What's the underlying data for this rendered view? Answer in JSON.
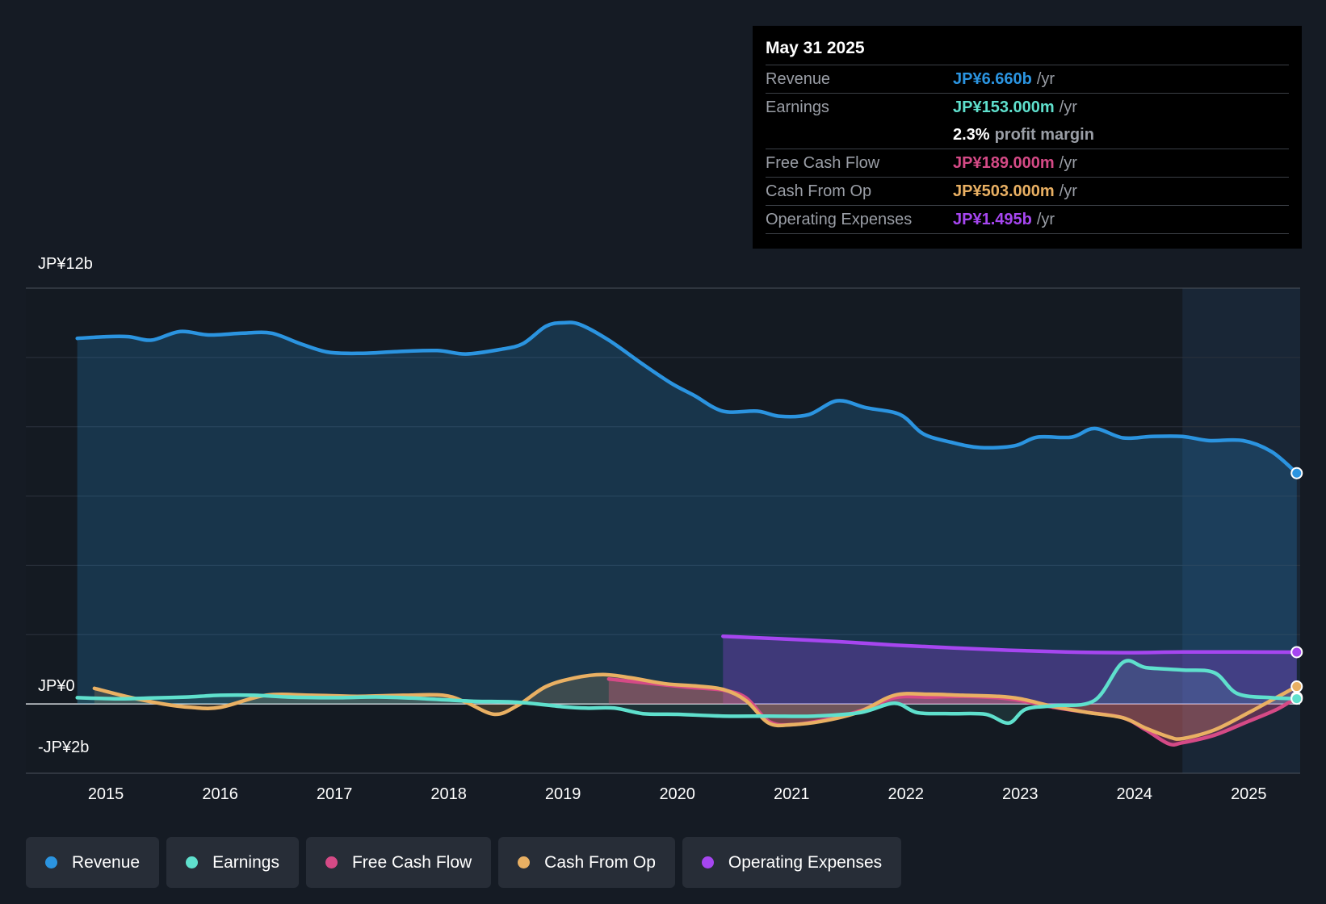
{
  "tooltip": {
    "date": "May 31 2025",
    "rows": [
      {
        "label": "Revenue",
        "value": "JP¥6.660b",
        "unit": "/yr"
      },
      {
        "label": "Earnings",
        "value": "JP¥153.000m",
        "unit": "/yr"
      },
      {
        "label": "",
        "value": "2.3%",
        "unit": "profit margin"
      },
      {
        "label": "Free Cash Flow",
        "value": "JP¥189.000m",
        "unit": "/yr"
      },
      {
        "label": "Cash From Op",
        "value": "JP¥503.000m",
        "unit": "/yr"
      },
      {
        "label": "Operating Expenses",
        "value": "JP¥1.495b",
        "unit": "/yr"
      }
    ]
  },
  "legend": [
    {
      "label": "Revenue",
      "color": "#2b94e0"
    },
    {
      "label": "Earnings",
      "color": "#5fe0cd"
    },
    {
      "label": "Free Cash Flow",
      "color": "#d54a86"
    },
    {
      "label": "Cash From Op",
      "color": "#e9b063"
    },
    {
      "label": "Operating Expenses",
      "color": "#a646f0"
    }
  ],
  "colors": {
    "revenue": "#2b94e0",
    "earnings": "#5fe0cd",
    "fcf": "#d54a86",
    "cfo": "#e9b063",
    "opex": "#a646f0"
  },
  "chart_data": {
    "type": "line",
    "title": "",
    "xlabel": "",
    "ylabel": "",
    "ylim": [
      -2,
      12
    ],
    "y_ticks": [
      {
        "value": 12,
        "label": "JP¥12b"
      },
      {
        "value": 0,
        "label": "JP¥0"
      },
      {
        "value": -2,
        "label": "-JP¥2b"
      }
    ],
    "x_range": [
      2014.3,
      2025.45
    ],
    "x_ticks": [
      2015,
      2016,
      2017,
      2018,
      2019,
      2020,
      2021,
      2022,
      2023,
      2024,
      2025
    ],
    "forecast_start": 2024.42,
    "series": [
      {
        "name": "Revenue",
        "key": "revenue",
        "unit": "JP¥b",
        "x": [
          2014.75,
          2015.0,
          2015.2,
          2015.4,
          2015.65,
          2015.9,
          2016.2,
          2016.45,
          2016.7,
          2016.95,
          2017.25,
          2017.55,
          2017.9,
          2018.15,
          2018.45,
          2018.65,
          2018.85,
          2019.0,
          2019.15,
          2019.4,
          2019.7,
          2019.95,
          2020.15,
          2020.4,
          2020.7,
          2020.9,
          2021.15,
          2021.4,
          2021.65,
          2021.95,
          2022.15,
          2022.4,
          2022.65,
          2022.95,
          2023.15,
          2023.45,
          2023.65,
          2023.9,
          2024.15,
          2024.42,
          2024.65,
          2024.95,
          2025.2,
          2025.42
        ],
        "values": [
          10.55,
          10.6,
          10.6,
          10.5,
          10.75,
          10.65,
          10.7,
          10.7,
          10.4,
          10.15,
          10.12,
          10.17,
          10.2,
          10.1,
          10.23,
          10.4,
          10.9,
          11.0,
          10.95,
          10.5,
          9.8,
          9.25,
          8.9,
          8.45,
          8.45,
          8.3,
          8.35,
          8.75,
          8.55,
          8.35,
          7.8,
          7.55,
          7.4,
          7.45,
          7.7,
          7.7,
          7.95,
          7.68,
          7.72,
          7.72,
          7.6,
          7.6,
          7.28,
          6.66
        ]
      },
      {
        "name": "Earnings",
        "key": "earnings",
        "unit": "JP¥b",
        "x": [
          2014.75,
          2015.1,
          2015.4,
          2015.7,
          2016.0,
          2016.3,
          2016.6,
          2017.0,
          2017.4,
          2017.8,
          2018.2,
          2018.6,
          2019.0,
          2019.2,
          2019.45,
          2019.7,
          2020.0,
          2020.4,
          2020.8,
          2021.2,
          2021.6,
          2021.9,
          2022.1,
          2022.4,
          2022.7,
          2022.9,
          2023.05,
          2023.3,
          2023.65,
          2023.9,
          2024.1,
          2024.42,
          2024.7,
          2024.9,
          2025.2,
          2025.42
        ],
        "values": [
          0.18,
          0.15,
          0.17,
          0.2,
          0.25,
          0.25,
          0.2,
          0.18,
          0.2,
          0.15,
          0.08,
          0.05,
          -0.08,
          -0.12,
          -0.12,
          -0.28,
          -0.3,
          -0.35,
          -0.35,
          -0.35,
          -0.25,
          0.02,
          -0.25,
          -0.28,
          -0.3,
          -0.55,
          -0.15,
          -0.05,
          0.1,
          1.2,
          1.05,
          0.98,
          0.9,
          0.3,
          0.18,
          0.153
        ]
      },
      {
        "name": "Free Cash Flow",
        "key": "fcf",
        "unit": "JP¥b",
        "x": [
          2019.4,
          2019.75,
          2020.1,
          2020.4,
          2020.6,
          2020.8,
          2021.0,
          2021.3,
          2021.6,
          2021.9,
          2022.2,
          2022.5,
          2022.8,
          2023.0,
          2023.3,
          2023.6,
          2023.9,
          2024.1,
          2024.3,
          2024.42,
          2024.7,
          2025.0,
          2025.25,
          2025.42
        ],
        "values": [
          0.72,
          0.6,
          0.48,
          0.4,
          0.18,
          -0.5,
          -0.6,
          -0.45,
          -0.2,
          0.18,
          0.2,
          0.22,
          0.18,
          0.1,
          -0.1,
          -0.25,
          -0.4,
          -0.75,
          -1.15,
          -1.12,
          -0.9,
          -0.5,
          -0.15,
          0.189
        ]
      },
      {
        "name": "Cash From Op",
        "key": "cfo",
        "unit": "JP¥b",
        "x": [
          2014.9,
          2015.2,
          2015.5,
          2015.75,
          2016.0,
          2016.4,
          2016.8,
          2017.2,
          2017.6,
          2017.95,
          2018.15,
          2018.4,
          2018.6,
          2018.85,
          2019.1,
          2019.35,
          2019.6,
          2019.9,
          2020.15,
          2020.4,
          2020.6,
          2020.8,
          2021.0,
          2021.3,
          2021.6,
          2021.9,
          2022.2,
          2022.5,
          2022.8,
          2023.0,
          2023.3,
          2023.6,
          2023.9,
          2024.1,
          2024.3,
          2024.42,
          2024.7,
          2025.0,
          2025.25,
          2025.42
        ],
        "values": [
          0.45,
          0.2,
          0.0,
          -0.1,
          -0.1,
          0.25,
          0.25,
          0.22,
          0.25,
          0.25,
          0.05,
          -0.3,
          -0.05,
          0.5,
          0.75,
          0.85,
          0.75,
          0.58,
          0.52,
          0.42,
          0.1,
          -0.55,
          -0.6,
          -0.48,
          -0.22,
          0.25,
          0.28,
          0.25,
          0.22,
          0.15,
          -0.08,
          -0.25,
          -0.4,
          -0.7,
          -0.95,
          -1.0,
          -0.75,
          -0.25,
          0.2,
          0.503
        ]
      },
      {
        "name": "Operating Expenses",
        "key": "opex",
        "unit": "JP¥b",
        "x": [
          2020.4,
          2020.9,
          2021.4,
          2021.9,
          2022.4,
          2022.9,
          2023.4,
          2023.9,
          2024.42,
          2024.9,
          2025.42
        ],
        "values": [
          1.95,
          1.88,
          1.8,
          1.7,
          1.62,
          1.55,
          1.5,
          1.48,
          1.5,
          1.5,
          1.495
        ]
      }
    ]
  }
}
